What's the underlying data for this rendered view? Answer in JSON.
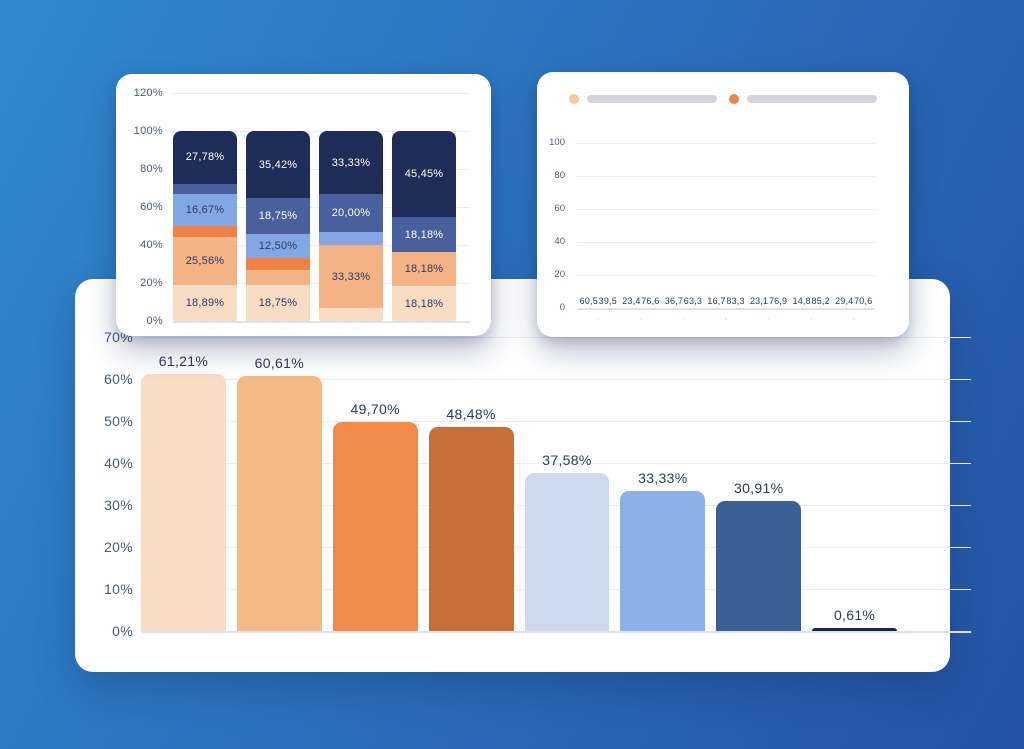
{
  "background": {
    "gradient_start": "#3189cd",
    "gradient_mid": "#2b70bc",
    "gradient_end": "#2452a4"
  },
  "card_surface": "#ffffff",
  "ui_colors": {
    "axis_label": "#4c5a80",
    "value_label": "#2d3a63",
    "grid_line": "#ececf2",
    "baseline": "#dfe2ec",
    "legend_pill": "#d4d4da",
    "clipped_tick": "#cfd3de"
  },
  "chart_data": [
    {
      "name": "stacked-percentage-bar-chart",
      "type": "bar",
      "stacked": true,
      "grid": true,
      "ylim": [
        0,
        120
      ],
      "y_ticks": [
        "120%",
        "100%",
        "80%",
        "60%",
        "40%",
        "20%",
        "0%"
      ],
      "x_tick_placeholders": [
        "·· · ···",
        "·· · ···",
        "·· · ···",
        "·· · ···"
      ],
      "bars": [
        {
          "segments": [
            {
              "value": 18.89,
              "label": "18,89%",
              "color": "#f9dcc4",
              "text_color": "#2d3a63"
            },
            {
              "value": 25.56,
              "label": "25,56%",
              "color": "#f3b384",
              "text_color": "#2d3a63"
            },
            {
              "value": 5.56,
              "label": "",
              "color": "#ef8347",
              "text_color": "#2d3a63"
            },
            {
              "value": 16.67,
              "label": "16,67%",
              "color": "#82a7e4",
              "text_color": "#2d3a63"
            },
            {
              "value": 5.56,
              "label": "",
              "color": "#4a5f9d",
              "text_color": "#ffffff"
            },
            {
              "value": 27.78,
              "label": "27,78%",
              "color": "#1e2c58",
              "text_color": "#ffffff"
            }
          ]
        },
        {
          "segments": [
            {
              "value": 18.75,
              "label": "18,75%",
              "color": "#f9dcc4",
              "text_color": "#2d3a63"
            },
            {
              "value": 8.33,
              "label": "",
              "color": "#f3b384",
              "text_color": "#2d3a63"
            },
            {
              "value": 6.25,
              "label": "",
              "color": "#ef8347",
              "text_color": "#2d3a63"
            },
            {
              "value": 12.5,
              "label": "12,50%",
              "color": "#82a7e4",
              "text_color": "#2d3a63"
            },
            {
              "value": 18.75,
              "label": "18,75%",
              "color": "#4a5f9d",
              "text_color": "#ffffff"
            },
            {
              "value": 35.42,
              "label": "35,42%",
              "color": "#1e2c58",
              "text_color": "#ffffff"
            }
          ]
        },
        {
          "segments": [
            {
              "value": 6.67,
              "label": "",
              "color": "#f9dcc4",
              "text_color": "#2d3a63"
            },
            {
              "value": 33.33,
              "label": "33,33%",
              "color": "#f3b384",
              "text_color": "#2d3a63"
            },
            {
              "value": 6.67,
              "label": "",
              "color": "#82a7e4",
              "text_color": "#2d3a63"
            },
            {
              "value": 20.0,
              "label": "20,00%",
              "color": "#4a5f9d",
              "text_color": "#ffffff"
            },
            {
              "value": 33.33,
              "label": "33,33%",
              "color": "#1e2c58",
              "text_color": "#ffffff"
            }
          ]
        },
        {
          "segments": [
            {
              "value": 18.18,
              "label": "18,18%",
              "color": "#f9dcc4",
              "text_color": "#2d3a63"
            },
            {
              "value": 18.18,
              "label": "18,18%",
              "color": "#f3b384",
              "text_color": "#2d3a63"
            },
            {
              "value": 18.18,
              "label": "18,18%",
              "color": "#4a5f9d",
              "text_color": "#ffffff"
            },
            {
              "value": 45.45,
              "label": "45,45%",
              "color": "#1e2c58",
              "text_color": "#ffffff"
            }
          ]
        }
      ]
    },
    {
      "name": "grouped-bar-chart",
      "type": "bar",
      "grid": true,
      "ylim": [
        0,
        100
      ],
      "y_ticks": [
        "100",
        "80",
        "60",
        "40",
        "20",
        "0"
      ],
      "legend": [
        {
          "color": "#f6c9a0",
          "label": ""
        },
        {
          "color": "#ed8743",
          "label": ""
        }
      ],
      "series": [
        {
          "name": "series-light",
          "color": "#f6cda9",
          "values": [
            60.5,
            23.4,
            36.7,
            16.7,
            23.1,
            14.8,
            29.4
          ],
          "labels": [
            "60,5",
            "23,4",
            "36,7",
            "16,7",
            "23,1",
            "14,8",
            "29,4"
          ]
        },
        {
          "name": "series-orange",
          "color": "#eb8a4e",
          "values": [
            39.5,
            76.6,
            63.3,
            83.3,
            76.9,
            85.2,
            70.6
          ],
          "labels": [
            "39,5",
            "76,6",
            "63,3",
            "83,3",
            "76,9",
            "85,2",
            "70,6"
          ]
        }
      ],
      "x_tick_placeholders": [
        "-",
        "-",
        "-",
        "-",
        "-",
        "-",
        "-"
      ]
    },
    {
      "name": "big-percentage-bar-chart",
      "type": "bar",
      "grid": true,
      "ylim": [
        0,
        70
      ],
      "y_ticks": [
        "70%",
        "60%",
        "50%",
        "40%",
        "30%",
        "20%",
        "10%",
        "0%"
      ],
      "bars": [
        {
          "value": 61.21,
          "label": "61,21%",
          "color": "#f8dcc3"
        },
        {
          "value": 60.61,
          "label": "60,61%",
          "color": "#f5b988"
        },
        {
          "value": 49.7,
          "label": "49,70%",
          "color": "#f08b4b"
        },
        {
          "value": 48.48,
          "label": "48,48%",
          "color": "#c76f39"
        },
        {
          "value": 37.58,
          "label": "37,58%",
          "color": "#ccd9ef"
        },
        {
          "value": 33.33,
          "label": "33,33%",
          "color": "#8cb0e8"
        },
        {
          "value": 30.91,
          "label": "30,91%",
          "color": "#3d6094"
        },
        {
          "value": 0.61,
          "label": "0,61%",
          "color": "#17274e"
        }
      ]
    }
  ]
}
